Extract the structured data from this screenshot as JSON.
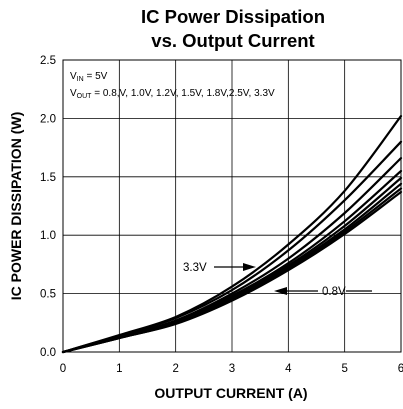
{
  "chart_data": {
    "type": "line",
    "title": [
      "IC Power Dissipation",
      "vs. Output Current"
    ],
    "xlabel": "OUTPUT CURRENT (A)",
    "ylabel": "IC POWER DISSIPATION (W)",
    "xlim": [
      0,
      6
    ],
    "ylim": [
      0,
      2.5
    ],
    "xticks": [
      "0",
      "1",
      "2",
      "3",
      "4",
      "5",
      "6"
    ],
    "yticks": [
      "0.0",
      "0.5",
      "1.0",
      "1.5",
      "2.0",
      "2.5"
    ],
    "grid": true,
    "x": [
      0,
      1,
      2,
      3,
      4,
      5,
      6
    ],
    "series": [
      {
        "name": "0.8V",
        "values": [
          0,
          0.12,
          0.24,
          0.44,
          0.7,
          1.01,
          1.37
        ]
      },
      {
        "name": "1.0V",
        "values": [
          0,
          0.12,
          0.245,
          0.45,
          0.71,
          1.03,
          1.4
        ]
      },
      {
        "name": "1.2V",
        "values": [
          0,
          0.12,
          0.25,
          0.46,
          0.725,
          1.05,
          1.44
        ]
      },
      {
        "name": "1.5V",
        "values": [
          0,
          0.125,
          0.255,
          0.47,
          0.74,
          1.08,
          1.49
        ]
      },
      {
        "name": "1.8V",
        "values": [
          0,
          0.125,
          0.26,
          0.48,
          0.76,
          1.12,
          1.55
        ]
      },
      {
        "name": "2.5V",
        "values": [
          0,
          0.13,
          0.27,
          0.5,
          0.8,
          1.19,
          1.66
        ]
      },
      {
        "name": "3.3V",
        "values": [
          0,
          0.14,
          0.29,
          0.53,
          0.87,
          1.3,
          1.8
        ]
      },
      {
        "name": "",
        "values": [
          0,
          0.145,
          0.3,
          0.56,
          0.92,
          1.38,
          2.02
        ]
      }
    ],
    "conditions": {
      "vin_main": "V",
      "vin_sub": "IN",
      "vin_value": " = 5V",
      "vout_main": "V",
      "vout_sub": "OUT",
      "vout_value": " = 0.8,V, 1.0V, 1.2V, 1.5V, 1.8V,2.5V, 3.3V"
    },
    "annotations": [
      {
        "text": "3.3V",
        "x": 3.5,
        "y": 0.72
      },
      {
        "text": "0.8V",
        "x": 3.55,
        "y": 0.58
      }
    ]
  }
}
